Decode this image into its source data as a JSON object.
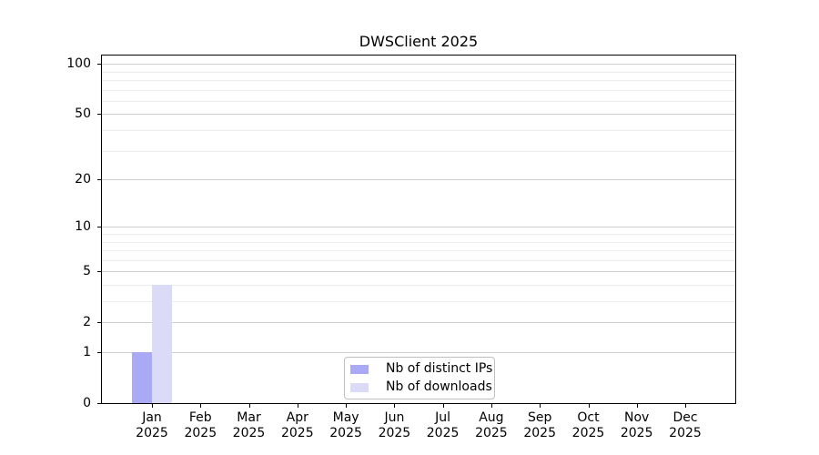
{
  "chart_data": {
    "type": "bar",
    "title": "DWSClient 2025",
    "categories": [
      "Jan",
      "Feb",
      "Mar",
      "Apr",
      "May",
      "Jun",
      "Jul",
      "Aug",
      "Sep",
      "Oct",
      "Nov",
      "Dec"
    ],
    "year_label": "2025",
    "series": [
      {
        "name": "Nb of distinct IPs",
        "color": "#a9a9f6",
        "values": [
          1,
          0,
          0,
          0,
          0,
          0,
          0,
          0,
          0,
          0,
          0,
          0
        ]
      },
      {
        "name": "Nb of downloads",
        "color": "#dbdbf8",
        "values": [
          4,
          0,
          0,
          0,
          0,
          0,
          0,
          0,
          0,
          0,
          0,
          0
        ]
      }
    ],
    "xlabel": "",
    "ylabel": "",
    "yscale": "log1p",
    "ylim": [
      0,
      112
    ],
    "yticks": [
      0,
      1,
      2,
      5,
      10,
      20,
      50,
      100
    ],
    "minor_gridlines": [
      3,
      4,
      6,
      7,
      8,
      9,
      30,
      40,
      60,
      70,
      80,
      90
    ],
    "grid": true,
    "legend_position": "lower center"
  },
  "colors": {
    "axis": "#000000",
    "major_grid": "#cccccc",
    "minor_grid": "#ededed",
    "legend_border": "#bfbfbf",
    "background": "#ffffff"
  }
}
